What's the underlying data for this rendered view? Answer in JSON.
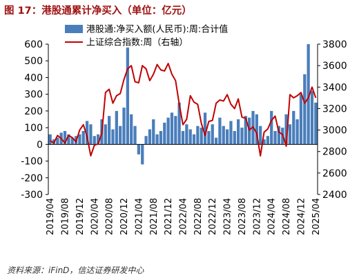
{
  "header": {
    "title": "图 17：港股通累计净买入（单位：亿元）"
  },
  "footer": {
    "source": "资料来源：iFinD，信达证券研发中心"
  },
  "colors": {
    "title": "#9e1010",
    "bars": "#4a7ebb",
    "line": "#c00000",
    "axis": "#000000"
  },
  "chart_data": {
    "type": "bar+line",
    "title": "",
    "legend_position": "top-left",
    "grid": false,
    "left_axis": {
      "range": [
        -300,
        600
      ],
      "ticks": [
        "600",
        "500",
        "400",
        "300",
        "200",
        "100",
        "0",
        "-100",
        "-200",
        "-300"
      ],
      "tick_values": [
        600,
        500,
        400,
        300,
        200,
        100,
        0,
        -100,
        -200,
        -300
      ]
    },
    "right_axis": {
      "range": [
        2400,
        3800
      ],
      "ticks": [
        "3800",
        "3600",
        "3400",
        "3200",
        "3000",
        "2800",
        "2600",
        "2400"
      ],
      "tick_values": [
        3800,
        3600,
        3400,
        3200,
        3000,
        2800,
        2600,
        2400
      ]
    },
    "x_range": [
      "2019-04",
      "2025-04"
    ],
    "x_ticks": [
      "2019/04",
      "2019/08",
      "2019/12",
      "2020/04",
      "2020/08",
      "2020/12",
      "2021/04",
      "2021/08",
      "2021/12",
      "2022/04",
      "2022/08",
      "2022/12",
      "2023/04",
      "2023/08",
      "2023/12",
      "2024/04",
      "2024/08",
      "2024/12",
      "2025/04"
    ],
    "series": [
      {
        "name": "港股通:净买入额(人民币):周:合计值",
        "kind": "bar",
        "axis": "left",
        "x": [
          "2019-04",
          "2019-05",
          "2019-06",
          "2019-07",
          "2019-08",
          "2019-09",
          "2019-10",
          "2019-11",
          "2019-12",
          "2020-01",
          "2020-02",
          "2020-03",
          "2020-04",
          "2020-05",
          "2020-06",
          "2020-07",
          "2020-08",
          "2020-09",
          "2020-10",
          "2020-11",
          "2020-12",
          "2021-01",
          "2021-02",
          "2021-03",
          "2021-04",
          "2021-05",
          "2021-06",
          "2021-07",
          "2021-08",
          "2021-09",
          "2021-10",
          "2021-11",
          "2021-12",
          "2022-01",
          "2022-02",
          "2022-03",
          "2022-04",
          "2022-05",
          "2022-06",
          "2022-07",
          "2022-08",
          "2022-09",
          "2022-10",
          "2022-11",
          "2022-12",
          "2023-01",
          "2023-02",
          "2023-03",
          "2023-04",
          "2023-05",
          "2023-06",
          "2023-07",
          "2023-08",
          "2023-09",
          "2023-10",
          "2023-11",
          "2023-12",
          "2024-01",
          "2024-02",
          "2024-03",
          "2024-04",
          "2024-05",
          "2024-06",
          "2024-07",
          "2024-08",
          "2024-09",
          "2024-10",
          "2024-11",
          "2024-12",
          "2025-01",
          "2025-02",
          "2025-03",
          "2025-04"
        ],
        "values": [
          60,
          30,
          40,
          70,
          80,
          60,
          40,
          50,
          60,
          80,
          140,
          120,
          50,
          60,
          150,
          120,
          170,
          90,
          200,
          110,
          220,
          580,
          180,
          110,
          -60,
          -120,
          50,
          90,
          150,
          60,
          80,
          130,
          160,
          190,
          170,
          250,
          80,
          120,
          90,
          60,
          110,
          100,
          190,
          80,
          120,
          40,
          160,
          110,
          90,
          140,
          80,
          150,
          100,
          170,
          160,
          200,
          180,
          110,
          30,
          50,
          200,
          80,
          110,
          100,
          180,
          120,
          200,
          150,
          300,
          420,
          600,
          320,
          250
        ]
      },
      {
        "name": "上证综合指数:周（右轴）",
        "kind": "line",
        "axis": "right",
        "x": [
          "2019-04",
          "2019-05",
          "2019-06",
          "2019-07",
          "2019-08",
          "2019-09",
          "2019-10",
          "2019-11",
          "2019-12",
          "2020-01",
          "2020-02",
          "2020-03",
          "2020-04",
          "2020-05",
          "2020-06",
          "2020-07",
          "2020-08",
          "2020-09",
          "2020-10",
          "2020-11",
          "2020-12",
          "2021-01",
          "2021-02",
          "2021-03",
          "2021-04",
          "2021-05",
          "2021-06",
          "2021-07",
          "2021-08",
          "2021-09",
          "2021-10",
          "2021-11",
          "2021-12",
          "2022-01",
          "2022-02",
          "2022-03",
          "2022-04",
          "2022-05",
          "2022-06",
          "2022-07",
          "2022-08",
          "2022-09",
          "2022-10",
          "2022-11",
          "2022-12",
          "2023-01",
          "2023-02",
          "2023-03",
          "2023-04",
          "2023-05",
          "2023-06",
          "2023-07",
          "2023-08",
          "2023-09",
          "2023-10",
          "2023-11",
          "2023-12",
          "2024-01",
          "2024-02",
          "2024-03",
          "2024-04",
          "2024-05",
          "2024-06",
          "2024-07",
          "2024-08",
          "2024-09",
          "2024-10",
          "2024-11",
          "2024-12",
          "2025-01",
          "2025-02",
          "2025-03",
          "2025-04"
        ],
        "values": [
          2900,
          2880,
          2950,
          2920,
          2880,
          2950,
          2930,
          2890,
          3000,
          3050,
          2940,
          2760,
          2860,
          2870,
          2970,
          3350,
          3380,
          3250,
          3320,
          3340,
          3470,
          3570,
          3600,
          3450,
          3440,
          3600,
          3570,
          3460,
          3520,
          3610,
          3560,
          3550,
          3620,
          3520,
          3460,
          3240,
          3050,
          3100,
          3320,
          3260,
          3240,
          3060,
          2950,
          3080,
          3090,
          3250,
          3280,
          3270,
          3330,
          3240,
          3200,
          3290,
          3120,
          3110,
          3000,
          3030,
          2970,
          2760,
          2980,
          3010,
          3090,
          3130,
          2980,
          2960,
          2850,
          3330,
          3300,
          3320,
          3350,
          3250,
          3300,
          3400,
          3300
        ]
      }
    ]
  }
}
